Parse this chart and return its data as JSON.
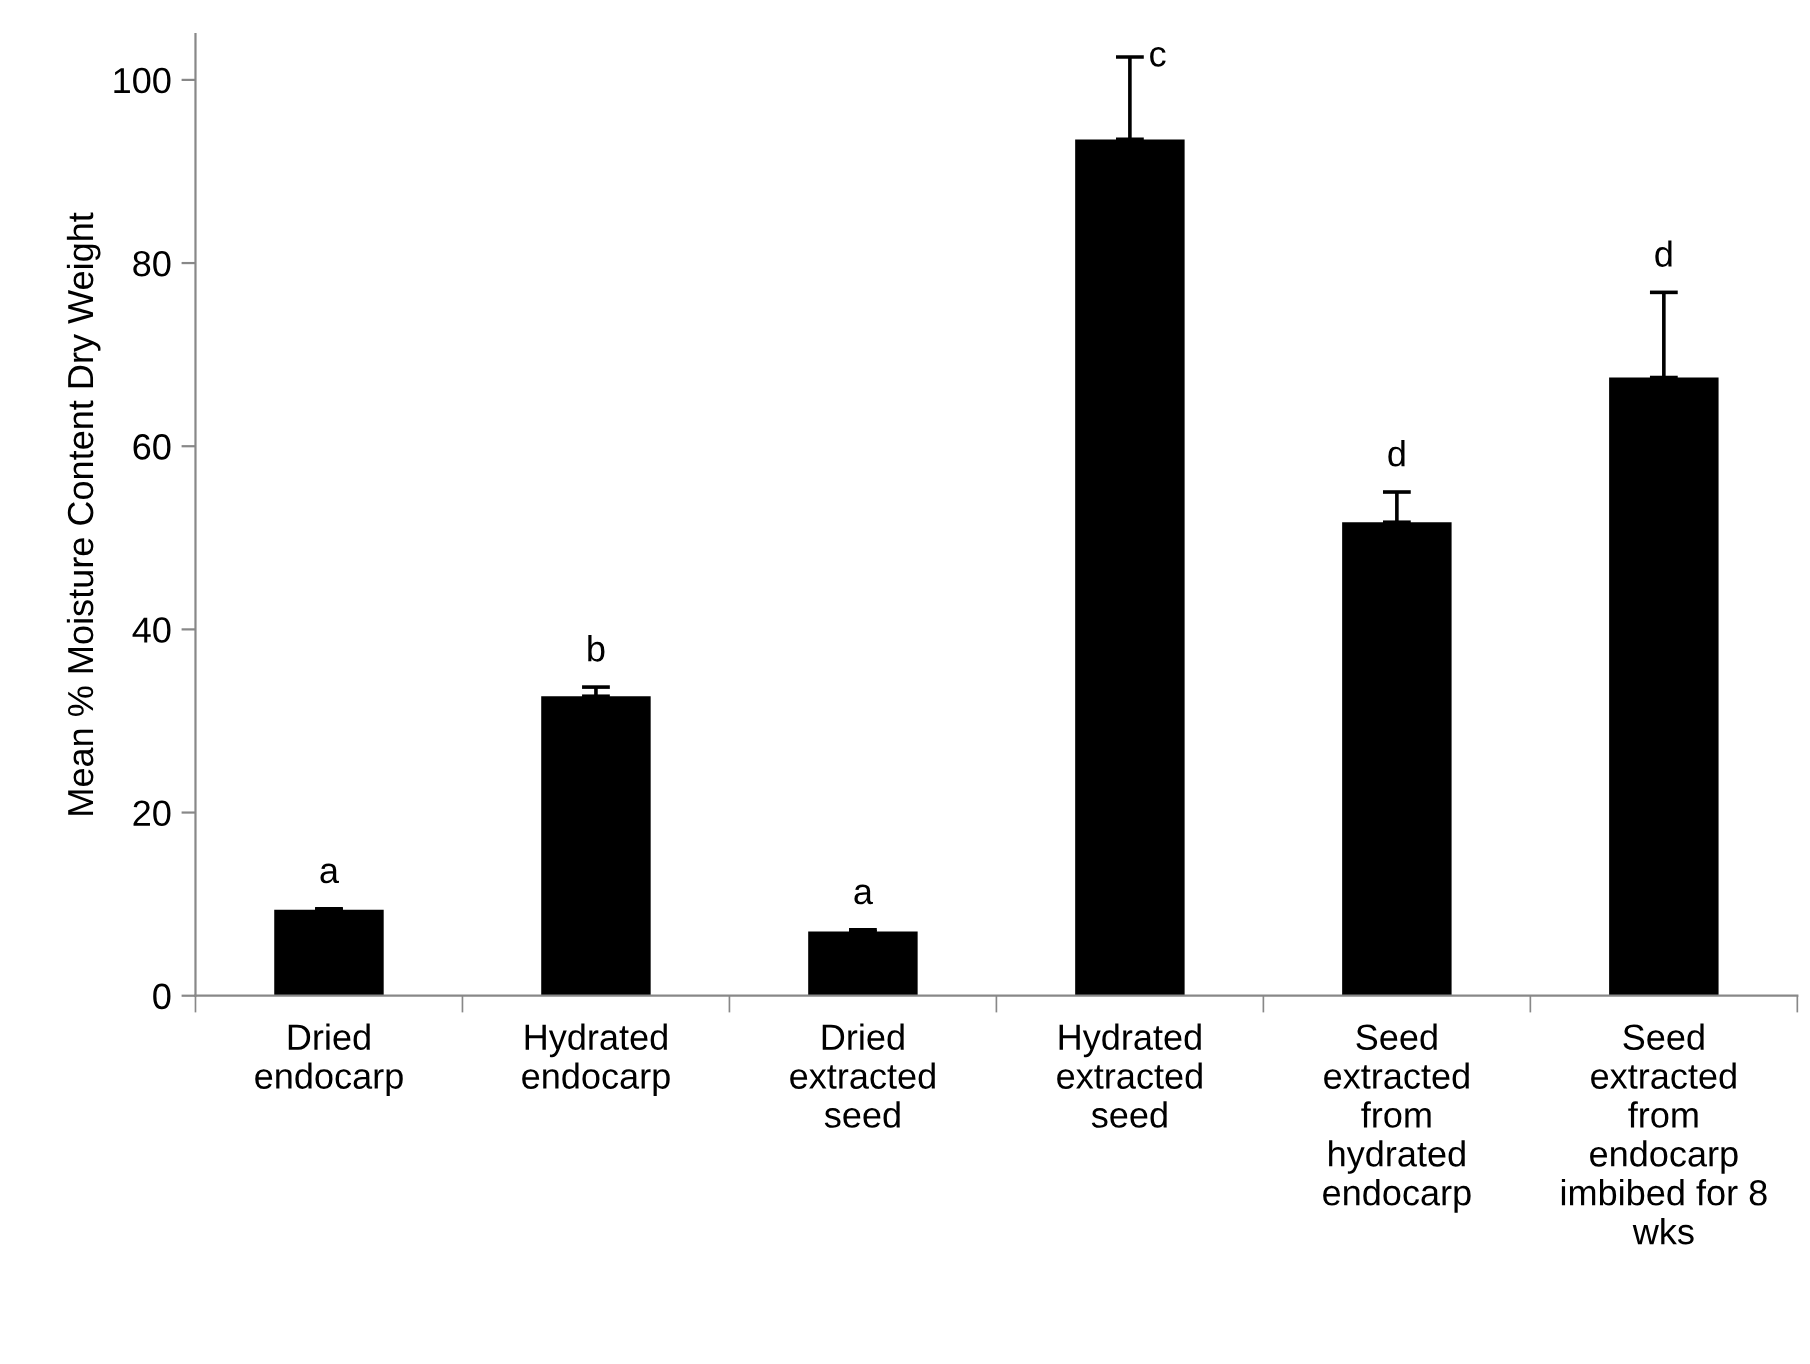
{
  "chart_data": {
    "type": "bar",
    "ylabel": "Mean % Moisture Content Dry Weight",
    "categories": [
      "Dried\nendocarp",
      "Hydrated\nendocarp",
      "Dried\nextracted\nseed",
      "Hydrated\nextracted\nseed",
      "Seed\nextracted\nfrom\nhydrated\nendocarp",
      "Seed\nextracted\nfrom\nendocarp\nimbibed for 8\nwks"
    ],
    "values": [
      9.4,
      32.7,
      7.0,
      93.5,
      51.7,
      67.5
    ],
    "errors": [
      [
        9.4,
        9.5
      ],
      [
        32.7,
        33.7
      ],
      [
        7.0,
        7.2
      ],
      [
        93.5,
        102.5
      ],
      [
        51.7,
        55.0
      ],
      [
        67.5,
        76.8
      ]
    ],
    "color": "#000000",
    "ylim": [
      0,
      105
    ],
    "yticks": [
      0,
      20,
      40,
      60,
      80,
      100
    ],
    "grid": false,
    "legend": false,
    "annotations": [
      "a",
      "b",
      "a",
      "c",
      "d",
      "d"
    ]
  }
}
